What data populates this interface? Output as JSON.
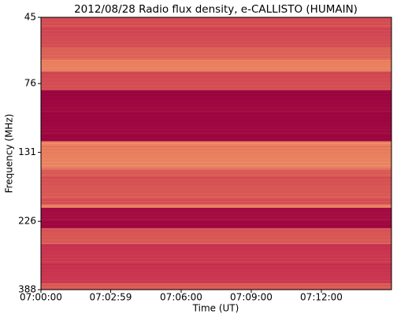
{
  "chart_data": {
    "type": "spectrogram",
    "title": "2012/08/28  Radio flux density, e-CALLISTO (HUMAIN)",
    "xlabel": "Time (UT)",
    "ylabel": "Frequency (MHz)",
    "xlim": [
      "07:00:00",
      "07:15:00"
    ],
    "xticks": [
      "07:00:00",
      "07:02:59",
      "07:06:00",
      "07:09:00",
      "07:12:00"
    ],
    "ylim": [
      45,
      388
    ],
    "yticks": [
      45,
      76,
      131,
      226,
      388
    ],
    "y_log": true,
    "y_inverted": true,
    "colormap": [
      "#96003e",
      "#c8324f",
      "#e77a5c",
      "#f6c487"
    ],
    "bands": [
      {
        "freq": [
          45,
          57
        ],
        "intensity": 0.45
      },
      {
        "freq": [
          57,
          63
        ],
        "intensity": 0.55
      },
      {
        "freq": [
          63,
          69
        ],
        "intensity": 0.7
      },
      {
        "freq": [
          69,
          80
        ],
        "intensity": 0.45
      },
      {
        "freq": [
          80,
          120
        ],
        "intensity": 0.05
      },
      {
        "freq": [
          120,
          150
        ],
        "intensity": 0.7
      },
      {
        "freq": [
          150,
          198
        ],
        "intensity": 0.5
      },
      {
        "freq": [
          198,
          203
        ],
        "intensity": 0.7
      },
      {
        "freq": [
          203,
          239
        ],
        "intensity": 0.08
      },
      {
        "freq": [
          239,
          270
        ],
        "intensity": 0.5
      },
      {
        "freq": [
          270,
          369
        ],
        "intensity": 0.35
      },
      {
        "freq": [
          369,
          388
        ],
        "intensity": 0.55
      }
    ]
  }
}
